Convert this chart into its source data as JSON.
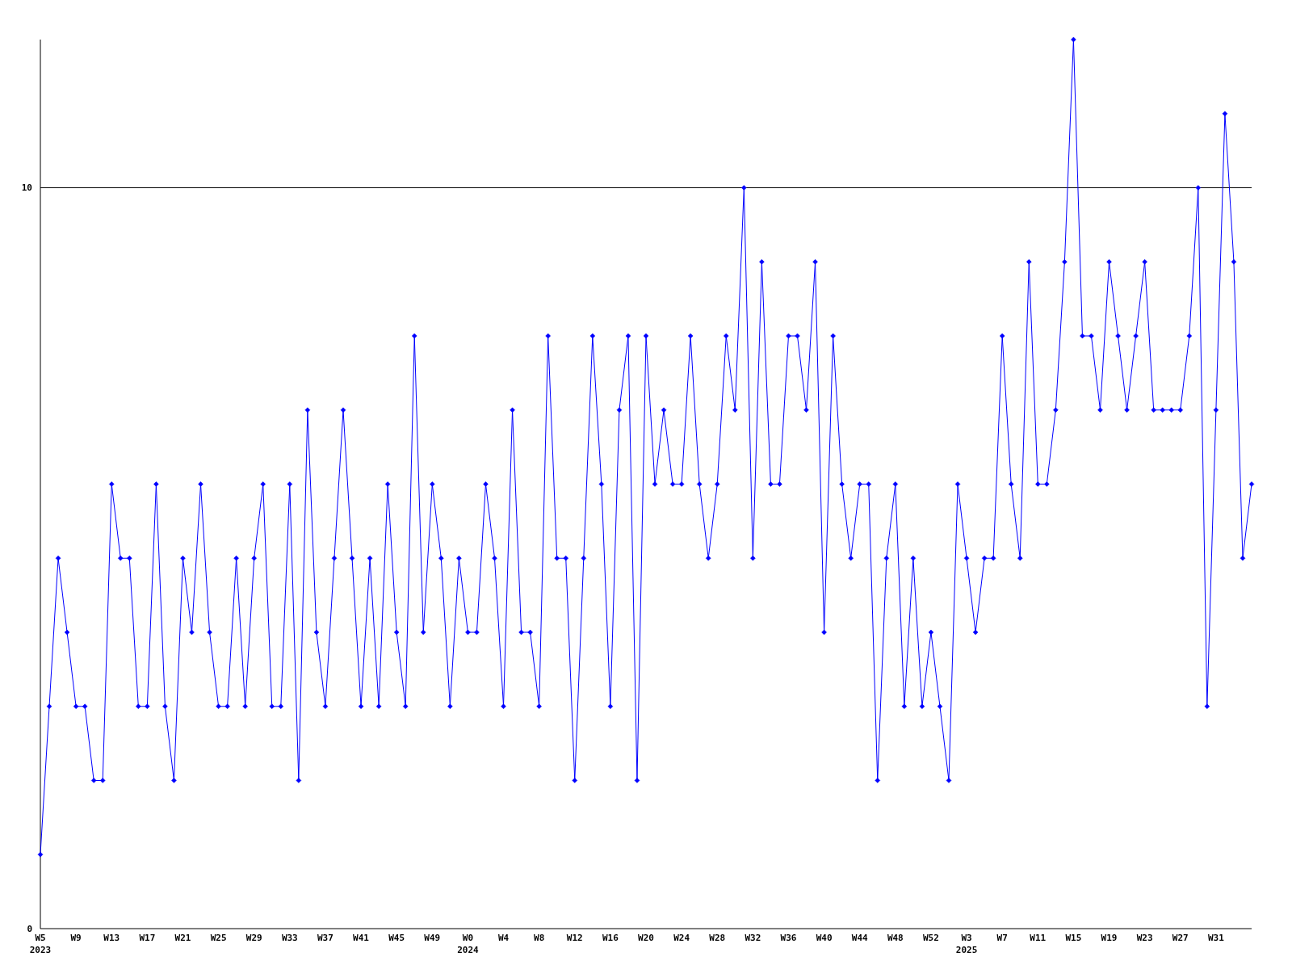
{
  "chart_data": {
    "type": "line",
    "categories": [
      "W5\n2023",
      null,
      null,
      null,
      "W9",
      null,
      null,
      null,
      "W13",
      null,
      null,
      null,
      "W17",
      null,
      null,
      null,
      "W21",
      null,
      null,
      null,
      "W25",
      null,
      null,
      null,
      "W29",
      null,
      null,
      null,
      "W33",
      null,
      null,
      null,
      "W37",
      null,
      null,
      null,
      "W41",
      null,
      null,
      null,
      "W45",
      null,
      null,
      null,
      "W49",
      null,
      null,
      null,
      "W0\n2024",
      null,
      null,
      null,
      "W4",
      null,
      null,
      null,
      "W8",
      null,
      null,
      null,
      "W12",
      null,
      null,
      null,
      "W16",
      null,
      null,
      null,
      "W20",
      null,
      null,
      null,
      "W24",
      null,
      null,
      null,
      "W28",
      null,
      null,
      null,
      "W32",
      null,
      null,
      null,
      "W36",
      null,
      null,
      null,
      "W40",
      null,
      null,
      null,
      "W44",
      null,
      null,
      null,
      "W48",
      null,
      null,
      null,
      "W52",
      null,
      null,
      null,
      "W3\n2025",
      null,
      null,
      null,
      "W7",
      null,
      null,
      null,
      "W11",
      null,
      null,
      null,
      "W15",
      null,
      null,
      null,
      "W19",
      null,
      null,
      null,
      "W23",
      null,
      null,
      null,
      "W27",
      null,
      null,
      null,
      "W31",
      null,
      null,
      null,
      null
    ],
    "series": [
      {
        "color": "#0000ff",
        "values": [
          1,
          3,
          5,
          4,
          3,
          3,
          2,
          2,
          6,
          5,
          5,
          3,
          3,
          6,
          3,
          2,
          5,
          4,
          6,
          4,
          3,
          3,
          5,
          3,
          5,
          6,
          3,
          3,
          6,
          2,
          7,
          4,
          3,
          5,
          7,
          5,
          3,
          5,
          3,
          6,
          4,
          3,
          8,
          4,
          6,
          5,
          3,
          5,
          4,
          4,
          6,
          5,
          3,
          7,
          4,
          4,
          3,
          8,
          5,
          5,
          2,
          5,
          8,
          6,
          3,
          7,
          8,
          2,
          8,
          6,
          7,
          6,
          6,
          8,
          6,
          5,
          6,
          8,
          7,
          10,
          5,
          9,
          6,
          6,
          8,
          8,
          7,
          9,
          4,
          8,
          6,
          5,
          6,
          6,
          2,
          5,
          6,
          3,
          5,
          3,
          4,
          3,
          2,
          6,
          5,
          4,
          5,
          5,
          8,
          6,
          5,
          9,
          6,
          6,
          7,
          9,
          12,
          8,
          8,
          7,
          9,
          8,
          7,
          8,
          9,
          7,
          7,
          7,
          7,
          8,
          10,
          3,
          7,
          11,
          9,
          5,
          6
        ]
      }
    ],
    "ylim": [
      0,
      12
    ],
    "yticks": [
      0,
      10
    ],
    "grid": "y",
    "marker": "diamond",
    "line_style": "solid"
  }
}
